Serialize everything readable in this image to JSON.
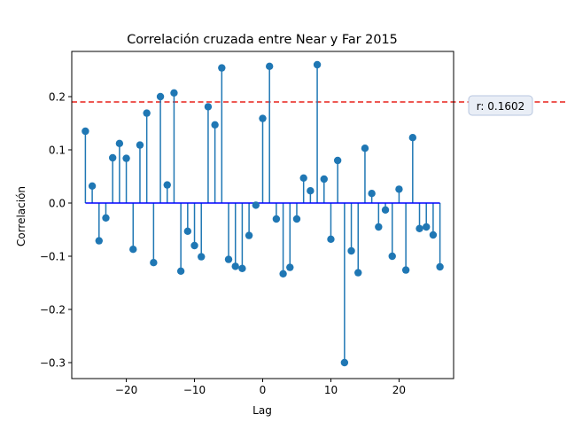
{
  "chart_data": {
    "type": "stem",
    "title": "Correlación cruzada entre Near y Far 2015",
    "xlabel": "Lag",
    "ylabel": "Correlación",
    "xlim": [
      -28,
      28
    ],
    "ylim": [
      -0.33,
      0.285
    ],
    "xticks": [
      -20,
      -10,
      0,
      10,
      20
    ],
    "xtick_labels": [
      "−20",
      "−10",
      "0",
      "10",
      "20"
    ],
    "yticks": [
      -0.3,
      -0.2,
      -0.1,
      0.0,
      0.1,
      0.2
    ],
    "ytick_labels": [
      "−0.3",
      "−0.2",
      "−0.1",
      "0.0",
      "0.1",
      "0.2"
    ],
    "grid": false,
    "lags": [
      -26,
      -25,
      -24,
      -23,
      -22,
      -21,
      -20,
      -19,
      -18,
      -17,
      -16,
      -15,
      -14,
      -13,
      -12,
      -11,
      -10,
      -9,
      -8,
      -7,
      -6,
      -5,
      -4,
      -3,
      -2,
      -1,
      0,
      1,
      2,
      3,
      4,
      5,
      6,
      7,
      8,
      9,
      10,
      11,
      12,
      13,
      14,
      15,
      16,
      17,
      18,
      19,
      20,
      21,
      22,
      23,
      24,
      25,
      26
    ],
    "values": [
      0.135,
      0.032,
      -0.071,
      -0.028,
      0.085,
      0.112,
      0.084,
      -0.087,
      0.109,
      0.169,
      -0.112,
      0.2,
      0.034,
      0.207,
      -0.128,
      -0.053,
      -0.08,
      -0.101,
      0.181,
      0.147,
      0.254,
      -0.106,
      -0.119,
      -0.123,
      -0.061,
      -0.004,
      0.159,
      0.257,
      -0.03,
      -0.133,
      -0.121,
      -0.03,
      0.047,
      0.023,
      0.26,
      0.045,
      -0.068,
      0.08,
      -0.3,
      -0.09,
      -0.131,
      0.103,
      0.018,
      -0.045,
      -0.013,
      -0.1,
      0.026,
      -0.126,
      0.123,
      -0.048,
      -0.045,
      -0.06,
      -0.12
    ],
    "threshold": {
      "value": 0.19,
      "color": "#e8211a",
      "style": "dashed",
      "label": "r: 0.1602"
    },
    "colors": {
      "stem": "#1f77b4",
      "baseline": "#0000ff",
      "badge_fill": "#e9eef6",
      "badge_border": "#b8c7e0"
    }
  }
}
